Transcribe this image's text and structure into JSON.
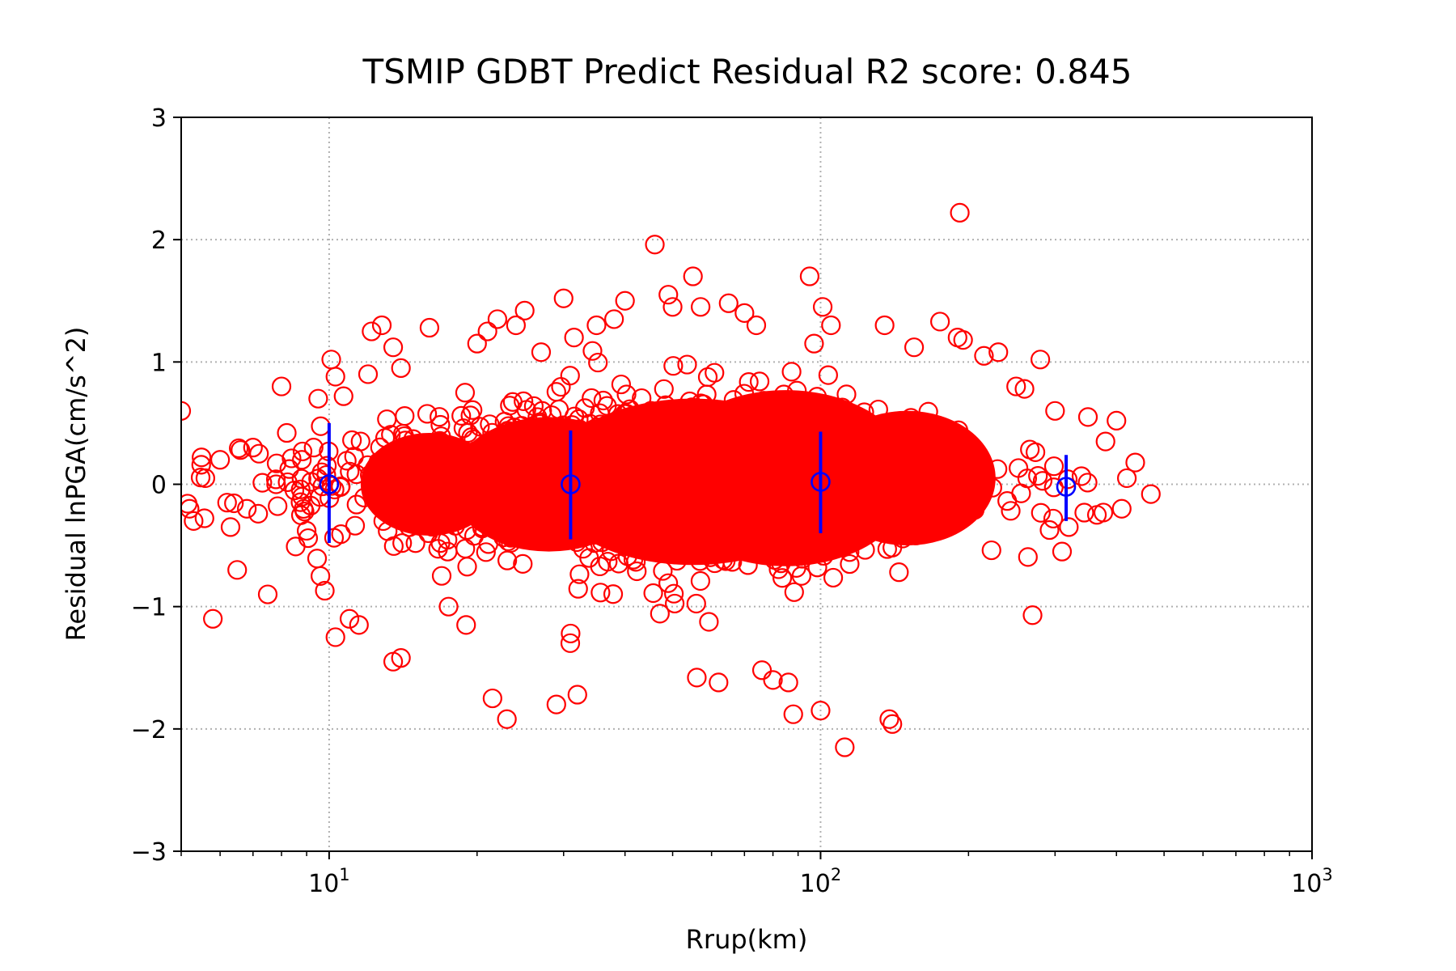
{
  "chart_data": {
    "type": "scatter",
    "title": "TSMIP GDBT Predict Residual R2 score: 0.845",
    "xlabel": "Rrup(km)",
    "ylabel": "Residual lnPGA(cm/s^2)",
    "x_scale": "log",
    "xlim": [
      5,
      1000
    ],
    "ylim": [
      -3,
      3
    ],
    "x_ticks": [
      {
        "value": 10,
        "base": "10",
        "exp": "1"
      },
      {
        "value": 100,
        "base": "10",
        "exp": "2"
      },
      {
        "value": 1000,
        "base": "10",
        "exp": "3"
      }
    ],
    "y_ticks": [
      {
        "value": -3,
        "label": "−3"
      },
      {
        "value": -2,
        "label": "−2"
      },
      {
        "value": -1,
        "label": "−1"
      },
      {
        "value": 0,
        "label": "0"
      },
      {
        "value": 1,
        "label": "1"
      },
      {
        "value": 2,
        "label": "2"
      },
      {
        "value": 3,
        "label": "3"
      }
    ],
    "grid": true,
    "colors": {
      "points": "#ff0000",
      "errorbars": "#0000ff"
    },
    "outlier_points": [
      [
        5.0,
        0.6
      ],
      [
        5.2,
        -0.2
      ],
      [
        5.3,
        -0.3
      ],
      [
        5.5,
        0.22
      ],
      [
        5.6,
        0.05
      ],
      [
        5.8,
        -1.1
      ],
      [
        6.0,
        0.2
      ],
      [
        6.2,
        -0.15
      ],
      [
        6.3,
        -0.35
      ],
      [
        6.5,
        -0.7
      ],
      [
        6.6,
        0.28
      ],
      [
        6.8,
        -0.2
      ],
      [
        7.0,
        0.3
      ],
      [
        7.2,
        0.25
      ],
      [
        7.5,
        -0.9
      ],
      [
        7.8,
        0.0
      ],
      [
        8.0,
        0.8
      ],
      [
        8.2,
        0.42
      ],
      [
        8.5,
        -0.05
      ],
      [
        8.8,
        0.2
      ],
      [
        9.0,
        -0.38
      ],
      [
        9.3,
        0.3
      ],
      [
        9.5,
        0.7
      ],
      [
        9.6,
        -0.75
      ],
      [
        9.8,
        -0.87
      ],
      [
        10.1,
        1.02
      ],
      [
        10.3,
        0.88
      ],
      [
        10.3,
        -1.25
      ],
      [
        10.7,
        0.72
      ],
      [
        11.0,
        -1.1
      ],
      [
        11.5,
        -1.15
      ],
      [
        12.0,
        0.9
      ],
      [
        12.2,
        1.25
      ],
      [
        12.8,
        1.3
      ],
      [
        13.5,
        -1.45
      ],
      [
        13.5,
        1.12
      ],
      [
        14.0,
        -1.42
      ],
      [
        14.0,
        0.95
      ],
      [
        16.0,
        1.28
      ],
      [
        17.5,
        -1.0
      ],
      [
        19.0,
        -1.15
      ],
      [
        20.0,
        1.15
      ],
      [
        21.0,
        1.25
      ],
      [
        21.5,
        -1.75
      ],
      [
        22.0,
        1.35
      ],
      [
        23.0,
        -1.92
      ],
      [
        24.0,
        1.3
      ],
      [
        25.0,
        1.42
      ],
      [
        27.0,
        1.08
      ],
      [
        29.0,
        -1.8
      ],
      [
        30.0,
        1.52
      ],
      [
        31.0,
        -1.22
      ],
      [
        31.5,
        1.2
      ],
      [
        32.0,
        -1.72
      ],
      [
        35.0,
        1.3
      ],
      [
        38.0,
        1.35
      ],
      [
        40.0,
        1.5
      ],
      [
        46.0,
        1.96
      ],
      [
        49.0,
        1.55
      ],
      [
        50.0,
        1.45
      ],
      [
        55.0,
        1.7
      ],
      [
        56.0,
        -1.58
      ],
      [
        57.0,
        1.45
      ],
      [
        62.0,
        -1.62
      ],
      [
        65.0,
        1.48
      ],
      [
        70.0,
        1.4
      ],
      [
        74.0,
        1.3
      ],
      [
        76.0,
        -1.52
      ],
      [
        80.0,
        -1.6
      ],
      [
        86.0,
        -1.62
      ],
      [
        88.0,
        -1.88
      ],
      [
        95.0,
        1.7
      ],
      [
        97.0,
        1.15
      ],
      [
        100.0,
        -1.85
      ],
      [
        101.0,
        1.45
      ],
      [
        105.0,
        1.3
      ],
      [
        112.0,
        -2.15
      ],
      [
        135.0,
        1.3
      ],
      [
        138.0,
        -1.92
      ],
      [
        140.0,
        -1.96
      ],
      [
        155.0,
        1.12
      ],
      [
        175.0,
        1.33
      ],
      [
        190.0,
        1.2
      ],
      [
        192.0,
        2.22
      ],
      [
        195.0,
        1.18
      ],
      [
        215.0,
        1.05
      ],
      [
        230.0,
        1.08
      ],
      [
        250.0,
        0.8
      ],
      [
        260.0,
        0.78
      ],
      [
        270.0,
        -1.07
      ],
      [
        280.0,
        1.02
      ],
      [
        300.0,
        0.6
      ],
      [
        310.0,
        -0.55
      ],
      [
        320.0,
        -0.35
      ],
      [
        350.0,
        0.55
      ],
      [
        365.0,
        -0.25
      ],
      [
        380.0,
        0.35
      ],
      [
        400.0,
        0.52
      ],
      [
        410.0,
        -0.2
      ],
      [
        420.0,
        0.05
      ],
      [
        470.0,
        -0.08
      ]
    ],
    "errorbars": [
      {
        "x": 10,
        "y": 0.0,
        "lower": -0.48,
        "upper": 0.5
      },
      {
        "x": 31,
        "y": 0.0,
        "lower": -0.45,
        "upper": 0.44
      },
      {
        "x": 100,
        "y": 0.02,
        "lower": -0.4,
        "upper": 0.43
      },
      {
        "x": 316,
        "y": -0.02,
        "lower": -0.3,
        "upper": 0.24
      }
    ]
  }
}
